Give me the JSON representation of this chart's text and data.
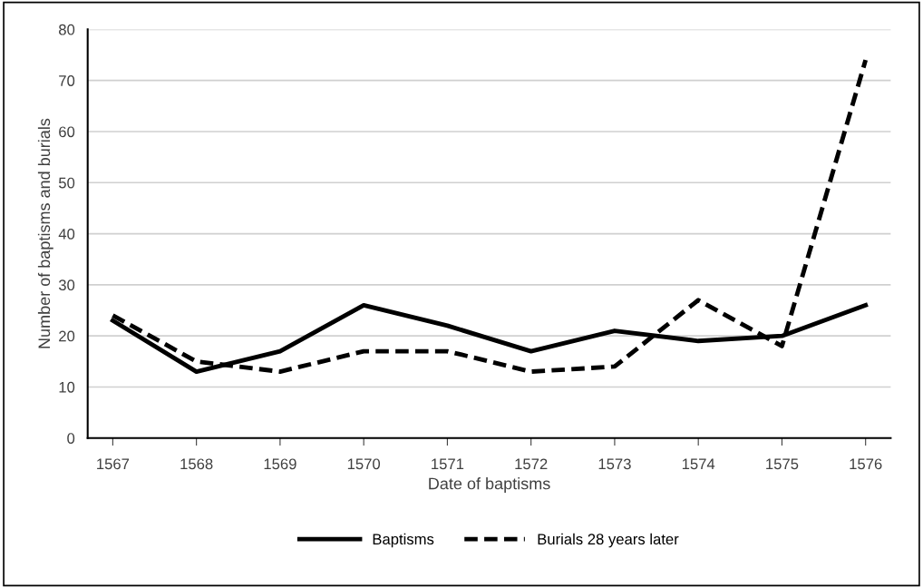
{
  "chart_data": {
    "type": "line",
    "xlabel": "Date of baptisms",
    "ylabel": "Number of baptisms and burials",
    "categories": [
      "1567",
      "1568",
      "1569",
      "1570",
      "1571",
      "1572",
      "1573",
      "1574",
      "1575",
      "1576"
    ],
    "series": [
      {
        "name": "Baptisms",
        "color": "#000000",
        "line_style": "solid",
        "values": [
          23,
          13,
          17,
          26,
          22,
          17,
          21,
          19,
          20,
          26
        ]
      },
      {
        "name": "Burials 28 years later",
        "color": "#000000",
        "line_style": "dashed",
        "values": [
          24,
          15,
          13,
          17,
          17,
          13,
          14,
          27,
          18,
          74
        ]
      }
    ],
    "ylim": [
      0,
      80
    ],
    "yticks": [
      0,
      10,
      20,
      30,
      40,
      50,
      60,
      70,
      80
    ],
    "grid": "y",
    "legend": "bottom",
    "marker": "none"
  }
}
